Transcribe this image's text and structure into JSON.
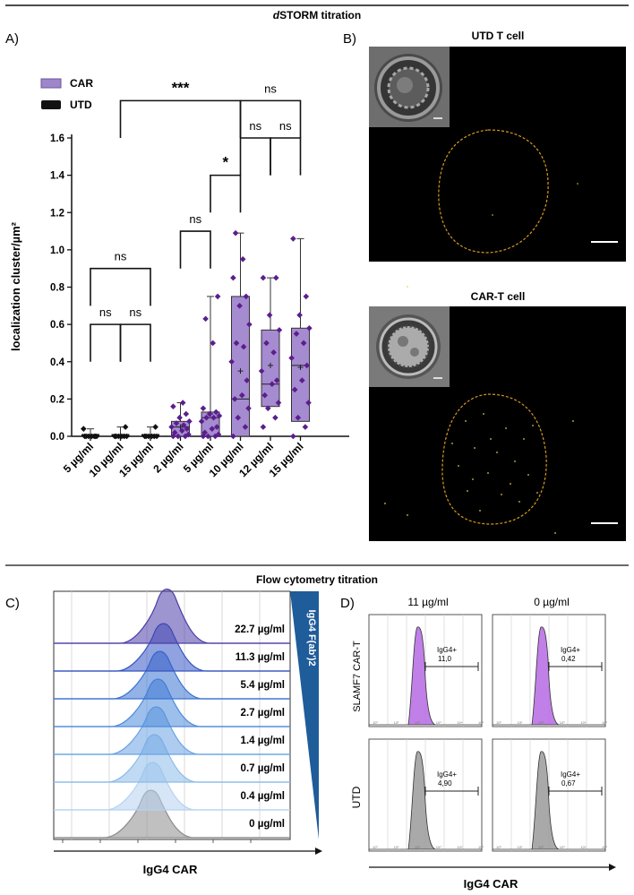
{
  "figure": {
    "section_top_title_prefix": "d",
    "section_top_title_rest": "STORM titration",
    "section_bottom_title": "Flow cytometry titration"
  },
  "panel_a": {
    "label": "A)",
    "legend": [
      {
        "name": "CAR",
        "color": "#9e86c9"
      },
      {
        "name": "UTD",
        "color": "#111111"
      }
    ]
  },
  "panel_b": {
    "label": "B)",
    "top_title": "UTD T cell",
    "bottom_title": "CAR-T cell",
    "outline_color": "#d69a1e"
  },
  "panel_c": {
    "label": "C)",
    "xlabel": "IgG4 CAR",
    "triangle_label": "IgG4 F(ab')2",
    "concentrations": [
      "22.7 µg/ml",
      "11.3 µg/ml",
      "5.4 µg/ml",
      "2.7 µg/ml",
      "1.4 µg/ml",
      "0.7 µg/ml",
      "0.4 µg/ml",
      "0 µg/ml"
    ],
    "colors": [
      "#4b3ea8",
      "#3555c4",
      "#3a73d1",
      "#4c8bdb",
      "#6aa3e3",
      "#8ebbea",
      "#b5d2f1",
      "#8c8c8c"
    ]
  },
  "panel_d": {
    "label": "D)",
    "col_titles": [
      "11 µg/ml",
      "0 µg/ml"
    ],
    "row_titles": [
      "SLAMF7 CAR-T",
      "UTD"
    ],
    "gate_label": "IgG4+",
    "gate_values": [
      "11,0",
      "0,42",
      "4,90",
      "0,67"
    ],
    "xlabel": "IgG4 CAR",
    "tick_labels": [
      "10⁰",
      "10¹",
      "10²",
      "10³",
      "10⁴",
      "10⁵"
    ],
    "car_color": "#b56ae3",
    "utd_color": "#9a9a9a"
  },
  "chart_data": {
    "type": "box",
    "title": "dSTORM titration",
    "ylabel": "localization cluster/µm²",
    "ylim": [
      0,
      1.6
    ],
    "yticks": [
      "0.0",
      "0.2",
      "0.4",
      "0.6",
      "0.8",
      "1.0",
      "1.2",
      "1.4",
      "1.6"
    ],
    "categories": [
      "5 µg/ml",
      "10 µg/ml",
      "15 µg/ml",
      "2 µg/ml",
      "5 µg/ml",
      "10 µg/ml",
      "12 µg/ml",
      "15 µg/ml"
    ],
    "groups": [
      "UTD",
      "UTD",
      "UTD",
      "CAR",
      "CAR",
      "CAR",
      "CAR",
      "CAR"
    ],
    "boxes": [
      {
        "min": 0,
        "q1": 0,
        "median": 0,
        "q3": 0,
        "max": 0.04,
        "mean": 0.005
      },
      {
        "min": 0,
        "q1": 0,
        "median": 0,
        "q3": 0,
        "max": 0.05,
        "mean": 0.006
      },
      {
        "min": 0,
        "q1": 0,
        "median": 0,
        "q3": 0,
        "max": 0.05,
        "mean": 0.006
      },
      {
        "min": 0,
        "q1": 0.0,
        "median": 0.05,
        "q3": 0.08,
        "max": 0.18,
        "mean": 0.05
      },
      {
        "min": 0,
        "q1": 0.0,
        "median": 0.1,
        "q3": 0.13,
        "max": 0.75,
        "mean": 0.12
      },
      {
        "min": 0,
        "q1": 0.0,
        "median": 0.2,
        "q3": 0.75,
        "max": 1.09,
        "mean": 0.35
      },
      {
        "min": 0.05,
        "q1": 0.16,
        "median": 0.28,
        "q3": 0.57,
        "max": 0.85,
        "mean": 0.38
      },
      {
        "min": 0,
        "q1": 0.08,
        "median": 0.38,
        "q3": 0.58,
        "max": 1.06,
        "mean": 0.37
      }
    ],
    "points": [
      [
        0,
        0,
        0,
        0,
        0,
        0,
        0,
        0.04
      ],
      [
        0,
        0,
        0,
        0,
        0,
        0,
        0.05
      ],
      [
        0,
        0,
        0,
        0,
        0,
        0,
        0.05
      ],
      [
        0,
        0,
        0,
        0.01,
        0.02,
        0.03,
        0.04,
        0.05,
        0.06,
        0.07,
        0.08,
        0.1,
        0.12,
        0.16,
        0.18
      ],
      [
        0,
        0,
        0,
        0.01,
        0.02,
        0.04,
        0.05,
        0.08,
        0.1,
        0.1,
        0.11,
        0.12,
        0.13,
        0.15,
        0.5,
        0.63,
        0.75
      ],
      [
        0,
        0.05,
        0.1,
        0.15,
        0.2,
        0.22,
        0.3,
        0.4,
        0.48,
        0.5,
        0.6,
        0.7,
        0.75,
        0.85,
        0.95,
        1.09
      ],
      [
        0.05,
        0.1,
        0.15,
        0.18,
        0.22,
        0.28,
        0.3,
        0.35,
        0.45,
        0.5,
        0.57,
        0.65,
        0.85,
        0.85
      ],
      [
        0,
        0.05,
        0.1,
        0.18,
        0.25,
        0.3,
        0.38,
        0.42,
        0.5,
        0.55,
        0.58,
        0.65,
        0.75,
        1.06
      ]
    ],
    "significance": [
      {
        "from": 0,
        "to": 2,
        "label": "ns",
        "y": 0.9
      },
      {
        "from": 0,
        "to": 1,
        "label": "ns",
        "y": 0.6
      },
      {
        "from": 1,
        "to": 2,
        "label": "ns",
        "y": 0.6
      },
      {
        "from": 3,
        "to": 4,
        "label": "ns",
        "y": 1.1
      },
      {
        "from": 4,
        "to": 5,
        "label": "*",
        "y": 1.4
      },
      {
        "from": 5,
        "to": 6,
        "label": "ns",
        "y": 1.6
      },
      {
        "from": 6,
        "to": 7,
        "label": "ns",
        "y": 1.6
      },
      {
        "from": 1,
        "to": 5,
        "label": "***",
        "y": 1.8
      },
      {
        "from": 5,
        "to": 7,
        "label": "ns",
        "y": 1.8
      }
    ]
  }
}
